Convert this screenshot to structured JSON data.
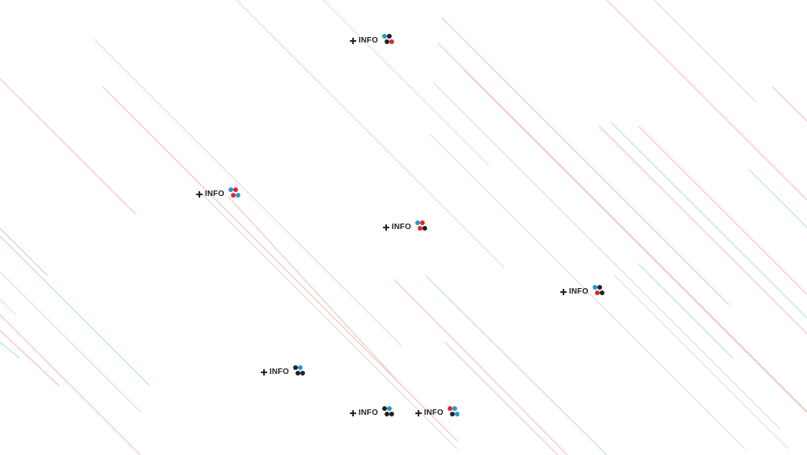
{
  "colors": {
    "dark": "#222222",
    "blue": "#1e9ad6",
    "red": "#e8232b",
    "line_blue": "#b9dcef",
    "line_red": "#f4c2c0",
    "line_gray": "#d9dde0"
  },
  "badges": [
    {
      "id": "badge-1",
      "label": "INFO",
      "plus_icon": "plus-icon",
      "dots": [
        "blue",
        "dark",
        "dark",
        "red"
      ]
    },
    {
      "id": "badge-2",
      "label": "INFO",
      "plus_icon": "plus-icon",
      "dots": [
        "blue",
        "red",
        "red",
        "blue"
      ]
    },
    {
      "id": "badge-3",
      "label": "INFO",
      "plus_icon": "plus-icon",
      "dots": [
        "blue",
        "red",
        "red",
        "dark"
      ]
    },
    {
      "id": "badge-4",
      "label": "INFO",
      "plus_icon": "plus-icon",
      "dots": [
        "blue",
        "dark",
        "red",
        "dark"
      ]
    },
    {
      "id": "badge-5",
      "label": "INFO",
      "plus_icon": "plus-icon",
      "dots": [
        "dark",
        "blue",
        "dark",
        "dark"
      ]
    },
    {
      "id": "badge-6",
      "label": "INFO",
      "plus_icon": "plus-icon",
      "dots": [
        "dark",
        "blue",
        "dark",
        "dark"
      ]
    },
    {
      "id": "badge-7",
      "label": "INFO",
      "plus_icon": "plus-icon",
      "dots": [
        "red",
        "blue",
        "dark",
        "blue"
      ]
    }
  ]
}
